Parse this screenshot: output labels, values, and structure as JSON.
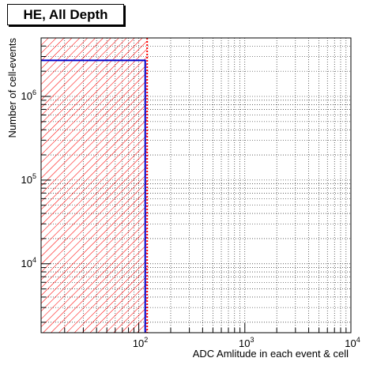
{
  "chart_data": {
    "type": "histogram",
    "title": "HE, All Depth",
    "xlabel": "ADC Amlitude in each event & cell",
    "ylabel": "Number of cell-events",
    "x_scale": "log",
    "y_scale": "log",
    "xlim": [
      12,
      10000
    ],
    "ylim": [
      1500,
      5000000
    ],
    "grid": true,
    "x_ticks": [
      {
        "value": 100,
        "base": "10",
        "exp": "2"
      },
      {
        "value": 1000,
        "base": "10",
        "exp": "3"
      },
      {
        "value": 10000,
        "base": "10",
        "exp": "4"
      }
    ],
    "y_ticks": [
      {
        "value": 10000,
        "base": "10",
        "exp": "4"
      },
      {
        "value": 100000,
        "base": "10",
        "exp": "5"
      },
      {
        "value": 1000000,
        "base": "10",
        "exp": "6"
      }
    ],
    "series": [
      {
        "bins": [
          {
            "x_low": 12,
            "x_high": 115,
            "count": 2700000
          }
        ],
        "line_color": "#0000cc",
        "fill": "hatched"
      }
    ],
    "cut_line": {
      "x": 120,
      "color": "#ff0000",
      "style": "dotted"
    },
    "hatched_region": {
      "x_low": 12,
      "x_high": 120,
      "color": "#ff0000"
    }
  }
}
